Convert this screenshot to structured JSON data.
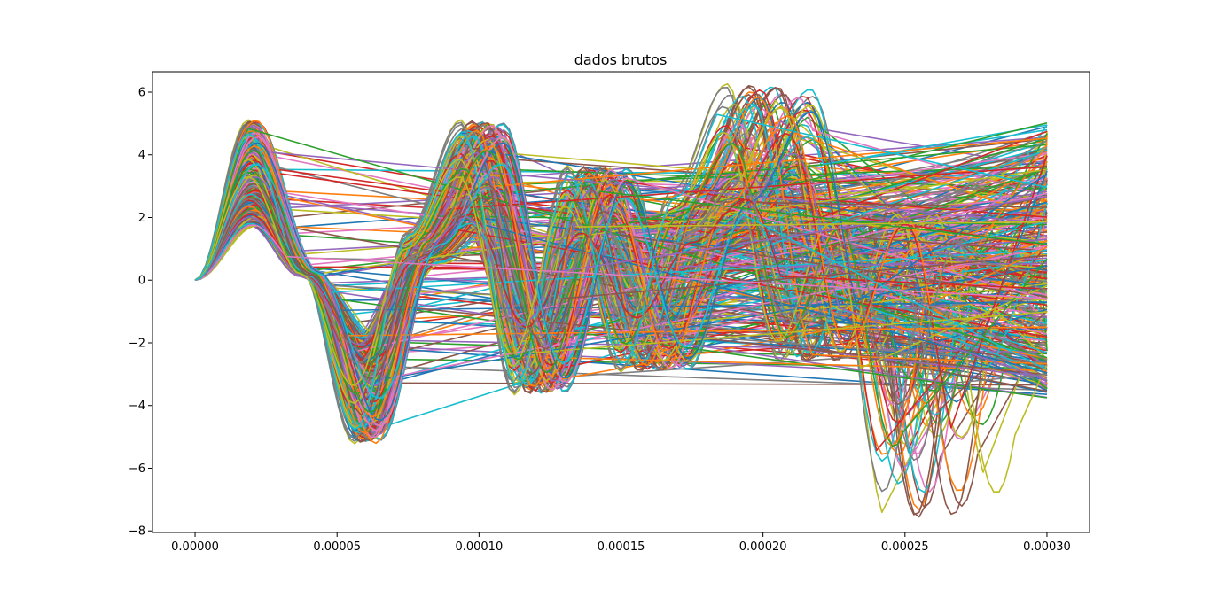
{
  "chart_data": {
    "type": "line",
    "title": "dados brutos",
    "xlabel": "",
    "ylabel": "",
    "xlim": [
      -1.5e-05,
      0.000315
    ],
    "ylim": [
      -8.05,
      6.65
    ],
    "x_ticks": [
      "0.00000",
      "0.00005",
      "0.00010",
      "0.00015",
      "0.00020",
      "0.00025",
      "0.00030"
    ],
    "x_tick_values": [
      0,
      5e-05,
      0.0001,
      0.00015,
      0.0002,
      0.00025,
      0.0003
    ],
    "y_ticks": [
      "−8",
      "−6",
      "−4",
      "−2",
      "0",
      "2",
      "4",
      "6"
    ],
    "y_tick_values": [
      -8,
      -6,
      -4,
      -2,
      0,
      2,
      4,
      6
    ],
    "grid": false,
    "legend": "none",
    "series_count": "many (overlapping raw waveforms)",
    "palette": [
      "#1f77b4",
      "#ff7f0e",
      "#2ca02c",
      "#d62728",
      "#9467bd",
      "#8c564b",
      "#e377c2",
      "#7f7f7f",
      "#bcbd22",
      "#17becf"
    ],
    "template_waveform": {
      "x": [
        0,
        2e-05,
        4e-05,
        6e-05,
        8e-05,
        0.0001,
        0.00012,
        0.00014,
        0.00016,
        0.00018,
        0.0002,
        0.00022,
        0.00024,
        0.00026,
        0.00028,
        0.0003
      ],
      "y": [
        0,
        4.9,
        0.3,
        -5.0,
        1.5,
        4.9,
        -3.5,
        3.5,
        -2.8,
        2.8,
        6.0,
        -2.5,
        2.3,
        -7.3,
        2.2,
        0.0
      ]
    },
    "envelope_upper": {
      "x": [
        2e-05,
        6e-05,
        8e-05,
        0.0001,
        0.00014,
        0.00015,
        0.000205,
        0.00023,
        0.00028,
        0.0003
      ],
      "y": [
        4.9,
        3.9,
        4.3,
        4.9,
        3.5,
        3.7,
        6.0,
        4.0,
        4.8,
        5.1
      ]
    },
    "envelope_lower": {
      "x": [
        4.5e-05,
        6e-05,
        0.00011,
        0.000155,
        0.00019,
        0.000258,
        0.0003
      ],
      "y": [
        -4.1,
        -5.0,
        -4.8,
        -5.3,
        -3.9,
        -7.3,
        -3.8
      ]
    },
    "end_value_range": [
      -3.8,
      5.1
    ]
  }
}
